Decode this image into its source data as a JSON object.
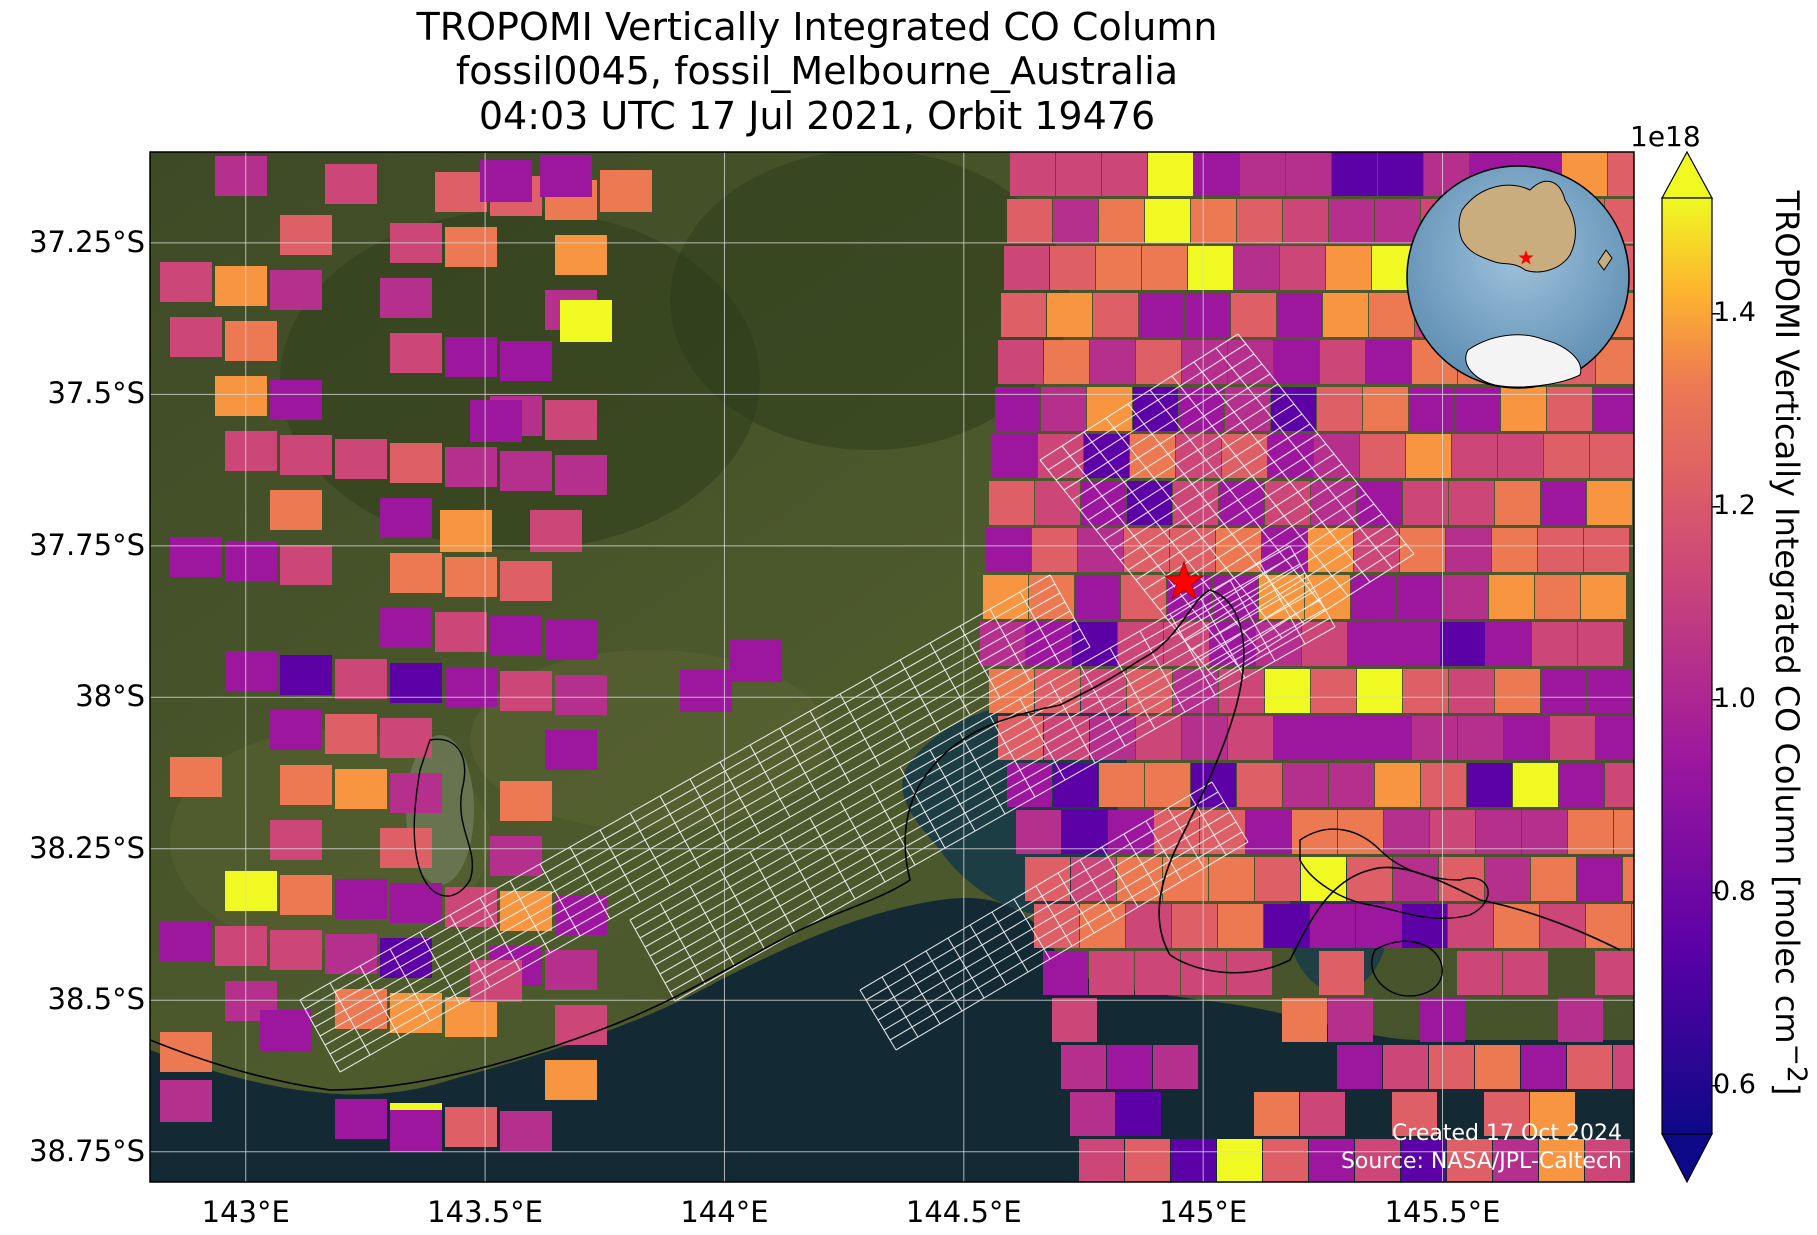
{
  "title": {
    "line1": "TROPOMI Vertically Integrated CO Column",
    "line2": "fossil0045, fossil_Melbourne_Australia",
    "line3": "04:03 UTC 17 Jul 2021, Orbit 19476"
  },
  "map": {
    "lon_range": [
      142.8,
      145.9
    ],
    "lat_range": [
      -38.8,
      -37.1
    ],
    "lat_ticks": [
      "37.25°S",
      "37.5°S",
      "37.75°S",
      "38°S",
      "38.25°S",
      "38.5°S",
      "38.75°S"
    ],
    "lat_tick_values": [
      -37.25,
      -37.5,
      -37.75,
      -38.0,
      -38.25,
      -38.5,
      -38.75
    ],
    "lon_ticks": [
      "143°E",
      "143.5°E",
      "144°E",
      "144.5°E",
      "145°E",
      "145.5°E"
    ],
    "lon_tick_values": [
      143.0,
      143.5,
      144.0,
      144.5,
      145.0,
      145.5
    ],
    "gridlines": true,
    "target_marker": {
      "lon": 144.96,
      "lat": -37.81,
      "symbol": "star",
      "color": "#ff0000"
    },
    "colormap": "plasma",
    "inset": "globe showing Australia and Antarctica with red star at Melbourne"
  },
  "colorbar": {
    "label": "TROPOMI Vertically Integrated CO Column [molec cm",
    "label_exp": "−2",
    "label_close": "]",
    "multiplier": "1e18",
    "ticks": [
      "0.6",
      "0.8",
      "1.0",
      "1.2",
      "1.4"
    ],
    "tick_values": [
      0.6,
      0.8,
      1.0,
      1.2,
      1.4
    ],
    "range": [
      0.55,
      1.52
    ],
    "extend": "both"
  },
  "credit": {
    "line1": "Created 17 Oct 2024",
    "line2": "Source: NASA/JPL-Caltech"
  }
}
